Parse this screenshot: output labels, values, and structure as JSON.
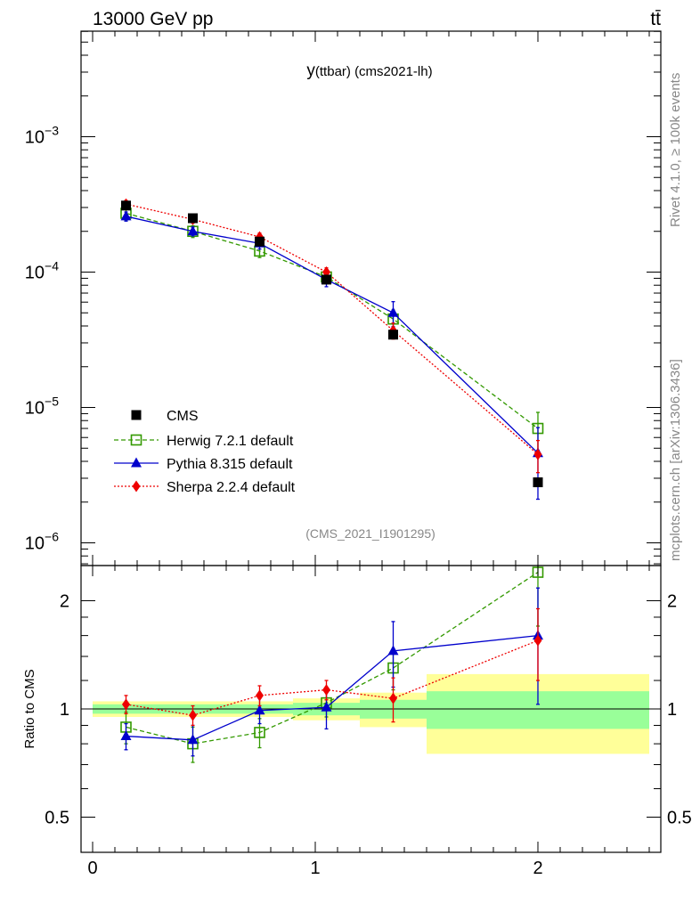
{
  "header": {
    "left": "13000 GeV pp",
    "right": "tt̄"
  },
  "side": {
    "top": "Rivet 4.1.0, ≥ 100k events",
    "bottom": "mcplots.cern.ch [arXiv:1306.3436]"
  },
  "chart_data": {
    "type": "line",
    "title": "y(ttbar) (cms2021-lh)",
    "title_main": "y",
    "title_rest": "(ttbar) (cms2021-lh)",
    "watermark": "(CMS_2021_I1901295)",
    "xlabel": "",
    "ylabel_ratio": "Ratio to CMS",
    "xlim": [
      -0.05,
      2.55
    ],
    "ylim": [
      6e-07,
      0.007
    ],
    "yscale": "log",
    "ratio_ylim": [
      0.43,
      2.45
    ],
    "x_ticks": [
      0,
      1,
      2
    ],
    "x_tick_labels": [
      "0",
      "1",
      "2"
    ],
    "y_ticks": [
      1e-06,
      1e-05,
      0.0001,
      0.001
    ],
    "y_tick_labels": [
      {
        "base": "10",
        "exp": "−6"
      },
      {
        "base": "10",
        "exp": "−5"
      },
      {
        "base": "10",
        "exp": "−4"
      },
      {
        "base": "10",
        "exp": "−3"
      }
    ],
    "ratio_ticks": [
      0.5,
      1,
      2
    ],
    "ratio_tick_labels": [
      "0.5",
      "1",
      "2"
    ],
    "bins": [
      [
        0.0,
        0.3
      ],
      [
        0.3,
        0.6
      ],
      [
        0.6,
        0.9
      ],
      [
        0.9,
        1.2
      ],
      [
        1.2,
        1.5
      ],
      [
        1.5,
        2.5
      ]
    ],
    "x": [
      0.15,
      0.45,
      0.75,
      1.05,
      1.35,
      2.0
    ],
    "data": {
      "name": "CMS",
      "color": "#000000",
      "values": [
        0.00031,
        0.00025,
        0.000168,
        8.8e-05,
        3.45e-05,
        2.8e-06
      ],
      "band_inner": [
        0.03,
        0.03,
        0.03,
        0.04,
        0.06,
        0.12
      ],
      "band_outer": [
        0.05,
        0.05,
        0.05,
        0.07,
        0.11,
        0.25
      ]
    },
    "series": [
      {
        "name": "Herwig 7.2.1 default",
        "color": "#339900",
        "marker": "open-square",
        "dash": "5,3",
        "values": [
          0.000272,
          0.0002,
          0.000143,
          9.2e-05,
          4.5e-05,
          7e-06
        ],
        "errors": [
          3e-05,
          2e-05,
          1.5e-05,
          1e-05,
          7.5e-06,
          2.2e-06
        ],
        "ratio": [
          0.89,
          0.8,
          0.86,
          1.04,
          1.3,
          2.4
        ],
        "ratio_errors": [
          0.09,
          0.09,
          0.08,
          0.09,
          0.17,
          0.7
        ]
      },
      {
        "name": "Pythia 8.315 default",
        "color": "#0000cc",
        "marker": "triangle",
        "dash": "",
        "values": [
          0.000258,
          0.0002,
          0.000163,
          8.8e-05,
          5e-05,
          4.6e-06
        ],
        "errors": [
          2e-05,
          1.5e-05,
          1.5e-05,
          1e-05,
          1.05e-05,
          2.5e-06
        ],
        "ratio": [
          0.84,
          0.82,
          0.99,
          1.01,
          1.45,
          1.6
        ],
        "ratio_errors": [
          0.07,
          0.08,
          0.08,
          0.13,
          0.3,
          0.57
        ]
      },
      {
        "name": "Sherpa 2.2.4 default",
        "color": "#ee0000",
        "marker": "diamond",
        "dash": "2,2",
        "values": [
          0.000318,
          0.000245,
          0.000182,
          0.0001,
          3.7e-05,
          4.5e-06
        ],
        "errors": [
          2e-05,
          1.5e-05,
          1.2e-05,
          7.5e-06,
          5e-06,
          1.2e-06
        ],
        "ratio": [
          1.03,
          0.96,
          1.09,
          1.13,
          1.07,
          1.55
        ],
        "ratio_errors": [
          0.06,
          0.06,
          0.07,
          0.07,
          0.15,
          0.35
        ]
      }
    ],
    "legend_position": "lower-left"
  }
}
